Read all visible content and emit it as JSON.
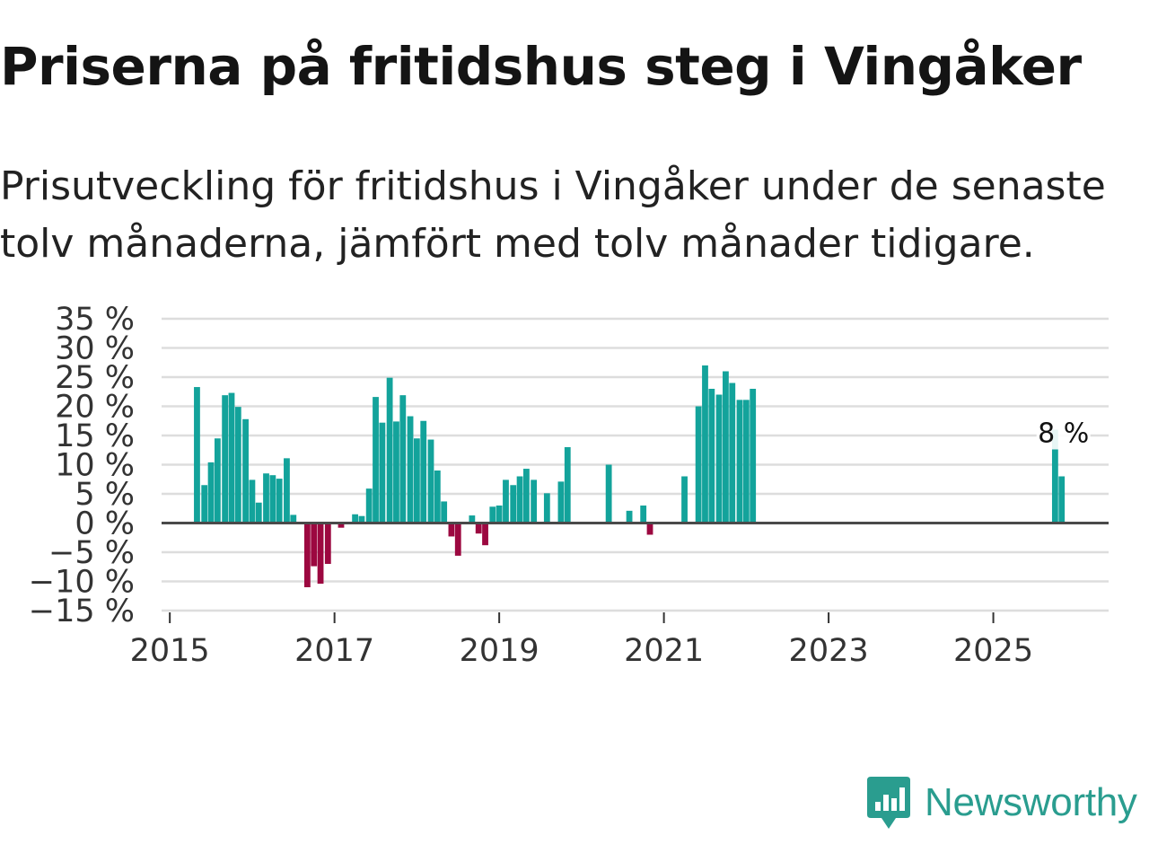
{
  "header": {
    "title": "Priserna på fritidshus steg i Vingåker",
    "subtitle": "Prisutveckling för fritidshus i Vingåker under de senaste tolv månaderna, jämfört med tolv månader tidigare."
  },
  "brand": {
    "name": "Newsworthy",
    "icon": "newsworthy-logo-icon"
  },
  "colors": {
    "positive": "#13a39b",
    "negative": "#9c0840",
    "grid": "#dddddd",
    "zero_line": "#4a4a4a"
  },
  "chart_data": {
    "type": "bar",
    "title": "Priserna på fritidshus steg i Vingåker",
    "subtitle": "Prisutveckling för fritidshus i Vingåker under de senaste tolv månaderna, jämfört med tolv månader tidigare.",
    "xlabel": "",
    "ylabel": "",
    "ylim": [
      -15,
      35
    ],
    "xlim": [
      2014.9,
      2026.4
    ],
    "y_ticks": [
      -15,
      -10,
      -5,
      0,
      5,
      10,
      15,
      20,
      25,
      30,
      35
    ],
    "y_tick_labels": [
      "−15 %",
      "−10 %",
      "−5 %",
      "0 %",
      "5 %",
      "10 %",
      "15 %",
      "20 %",
      "25 %",
      "30 %",
      "35 %"
    ],
    "x_ticks": [
      2015,
      2017,
      2019,
      2021,
      2023,
      2025
    ],
    "x_tick_labels": [
      "2015",
      "2017",
      "2019",
      "2021",
      "2023",
      "2025"
    ],
    "grid": true,
    "series": [
      {
        "name": "Prisutveckling",
        "unit": "%",
        "points": [
          {
            "x": 2015.33,
            "y": 23.3
          },
          {
            "x": 2015.42,
            "y": 6.5
          },
          {
            "x": 2015.5,
            "y": 10.4
          },
          {
            "x": 2015.58,
            "y": 14.5
          },
          {
            "x": 2015.67,
            "y": 21.9
          },
          {
            "x": 2015.75,
            "y": 22.3
          },
          {
            "x": 2015.83,
            "y": 19.9
          },
          {
            "x": 2015.92,
            "y": 17.8
          },
          {
            "x": 2016.0,
            "y": 7.4
          },
          {
            "x": 2016.08,
            "y": 3.5
          },
          {
            "x": 2016.17,
            "y": 8.5
          },
          {
            "x": 2016.25,
            "y": 8.2
          },
          {
            "x": 2016.33,
            "y": 7.6
          },
          {
            "x": 2016.42,
            "y": 11.1
          },
          {
            "x": 2016.5,
            "y": 1.4
          },
          {
            "x": 2016.67,
            "y": -11.0
          },
          {
            "x": 2016.75,
            "y": -7.4
          },
          {
            "x": 2016.83,
            "y": -10.4
          },
          {
            "x": 2016.92,
            "y": -7.0
          },
          {
            "x": 2017.08,
            "y": -0.8
          },
          {
            "x": 2017.25,
            "y": 1.5
          },
          {
            "x": 2017.33,
            "y": 1.2
          },
          {
            "x": 2017.42,
            "y": 5.9
          },
          {
            "x": 2017.5,
            "y": 21.6
          },
          {
            "x": 2017.58,
            "y": 17.2
          },
          {
            "x": 2017.67,
            "y": 24.9
          },
          {
            "x": 2017.75,
            "y": 17.4
          },
          {
            "x": 2017.83,
            "y": 21.9
          },
          {
            "x": 2017.92,
            "y": 18.3
          },
          {
            "x": 2018.0,
            "y": 14.5
          },
          {
            "x": 2018.08,
            "y": 17.5
          },
          {
            "x": 2018.17,
            "y": 14.3
          },
          {
            "x": 2018.25,
            "y": 9.0
          },
          {
            "x": 2018.33,
            "y": 3.7
          },
          {
            "x": 2018.42,
            "y": -2.3
          },
          {
            "x": 2018.5,
            "y": -5.6
          },
          {
            "x": 2018.67,
            "y": 1.3
          },
          {
            "x": 2018.75,
            "y": -1.8
          },
          {
            "x": 2018.83,
            "y": -3.8
          },
          {
            "x": 2018.92,
            "y": 2.8
          },
          {
            "x": 2019.0,
            "y": 3.0
          },
          {
            "x": 2019.08,
            "y": 7.4
          },
          {
            "x": 2019.17,
            "y": 6.5
          },
          {
            "x": 2019.25,
            "y": 8.0
          },
          {
            "x": 2019.33,
            "y": 9.3
          },
          {
            "x": 2019.42,
            "y": 7.4
          },
          {
            "x": 2019.58,
            "y": 5.1
          },
          {
            "x": 2019.75,
            "y": 7.1
          },
          {
            "x": 2019.83,
            "y": 13.0
          },
          {
            "x": 2020.33,
            "y": 10.0
          },
          {
            "x": 2020.58,
            "y": 2.1
          },
          {
            "x": 2020.75,
            "y": 3.0
          },
          {
            "x": 2020.83,
            "y": -2.0
          },
          {
            "x": 2021.25,
            "y": 8.0
          },
          {
            "x": 2021.42,
            "y": 20.0
          },
          {
            "x": 2021.5,
            "y": 27.0
          },
          {
            "x": 2021.58,
            "y": 23.0
          },
          {
            "x": 2021.67,
            "y": 22.0
          },
          {
            "x": 2021.75,
            "y": 26.0
          },
          {
            "x": 2021.83,
            "y": 24.0
          },
          {
            "x": 2021.92,
            "y": 21.1
          },
          {
            "x": 2022.0,
            "y": 21.1
          },
          {
            "x": 2022.08,
            "y": 23.0
          },
          {
            "x": 2025.75,
            "y": 16.0
          },
          {
            "x": 2025.83,
            "y": 8.0
          }
        ]
      }
    ],
    "annotations": [
      {
        "text": "8 %",
        "x": 2025.83,
        "y": 8.0
      }
    ]
  }
}
